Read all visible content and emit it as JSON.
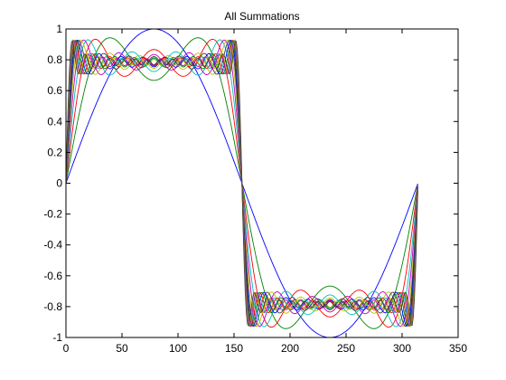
{
  "chart_data": {
    "type": "line",
    "title": "All Summations",
    "xlabel": "",
    "ylabel": "",
    "xlim": [
      0,
      350
    ],
    "ylim": [
      -1,
      1
    ],
    "xticks": [
      0,
      50,
      100,
      150,
      200,
      250,
      300,
      350
    ],
    "yticks": [
      -1,
      -0.8,
      -0.6,
      -0.4,
      -0.2,
      0,
      0.2,
      0.4,
      0.6,
      0.8,
      1
    ],
    "grid": false,
    "legend": "none",
    "x_start": 0,
    "x_end": 314,
    "sample_step": 1,
    "series": [
      {
        "color": "#0000ff",
        "terms": 1
      },
      {
        "color": "#008000",
        "terms": 2
      },
      {
        "color": "#ff0000",
        "terms": 3
      },
      {
        "color": "#00bfbf",
        "terms": 4
      },
      {
        "color": "#bf00bf",
        "terms": 5
      },
      {
        "color": "#bfbf00",
        "terms": 6
      },
      {
        "color": "#404040",
        "terms": 7
      },
      {
        "color": "#0000ff",
        "terms": 8
      },
      {
        "color": "#008000",
        "terms": 9
      },
      {
        "color": "#ff0000",
        "terms": 10
      },
      {
        "color": "#00bfbf",
        "terms": 11
      },
      {
        "color": "#bf00bf",
        "terms": 12
      },
      {
        "color": "#bfbf00",
        "terms": 13
      },
      {
        "color": "#404040",
        "terms": 14
      }
    ]
  }
}
